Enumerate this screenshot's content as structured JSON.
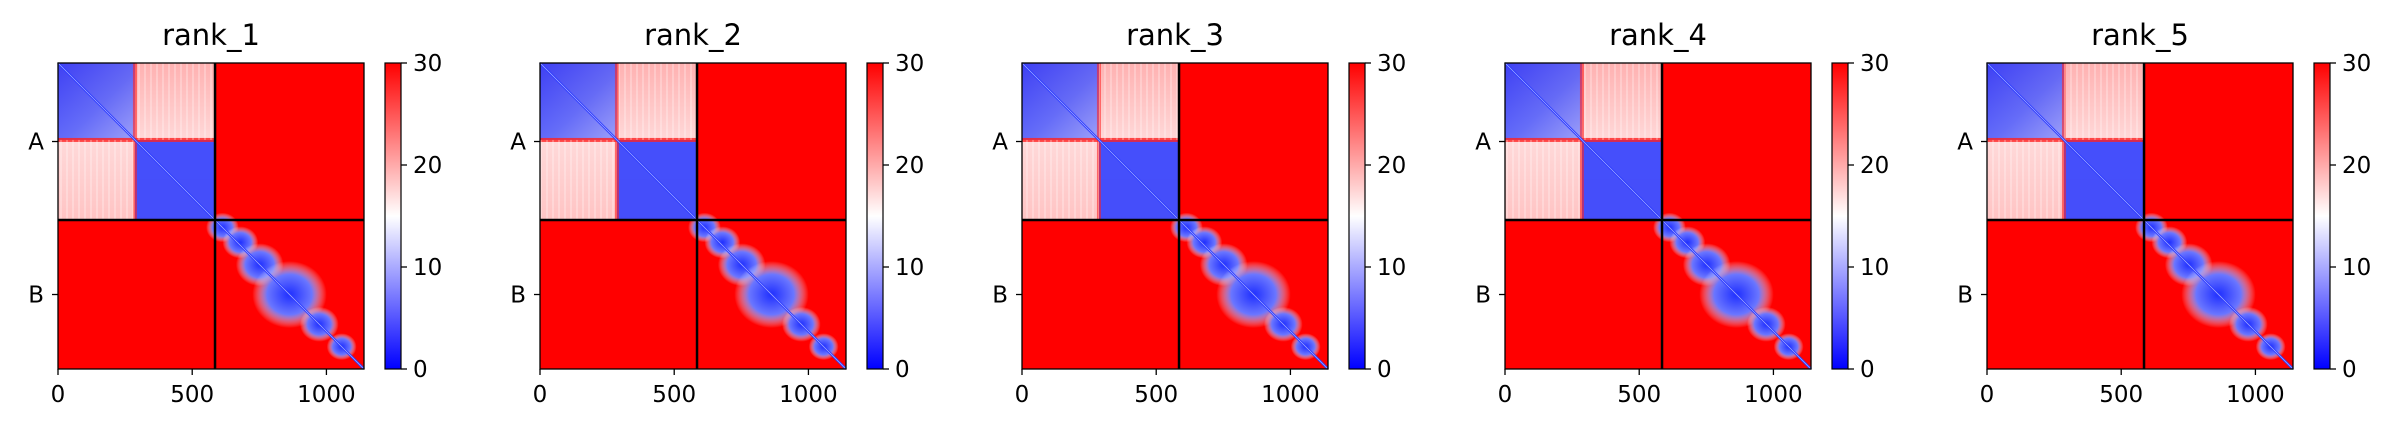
{
  "chart_data": [
    {
      "type": "heatmap",
      "title": "rank_1",
      "y_tick_labels": [
        "A",
        "B"
      ],
      "x_tick_labels": [
        "0",
        "500",
        "1000"
      ],
      "x_ticks": [
        0,
        500,
        1000
      ],
      "xlim": [
        0,
        1140
      ],
      "chain_boundary": 585,
      "colorbar": {
        "min": 0,
        "max": 30,
        "ticks": [
          0,
          10,
          20,
          30
        ],
        "colors": [
          "#0000ff",
          "#ffffff",
          "#ff0000"
        ]
      }
    },
    {
      "type": "heatmap",
      "title": "rank_2",
      "y_tick_labels": [
        "A",
        "B"
      ],
      "x_tick_labels": [
        "0",
        "500",
        "1000"
      ],
      "x_ticks": [
        0,
        500,
        1000
      ],
      "xlim": [
        0,
        1140
      ],
      "chain_boundary": 585,
      "colorbar": {
        "min": 0,
        "max": 30,
        "ticks": [
          0,
          10,
          20,
          30
        ],
        "colors": [
          "#0000ff",
          "#ffffff",
          "#ff0000"
        ]
      }
    },
    {
      "type": "heatmap",
      "title": "rank_3",
      "y_tick_labels": [
        "A",
        "B"
      ],
      "x_tick_labels": [
        "0",
        "500",
        "1000"
      ],
      "x_ticks": [
        0,
        500,
        1000
      ],
      "xlim": [
        0,
        1140
      ],
      "chain_boundary": 585,
      "colorbar": {
        "min": 0,
        "max": 30,
        "ticks": [
          0,
          10,
          20,
          30
        ],
        "colors": [
          "#0000ff",
          "#ffffff",
          "#ff0000"
        ]
      }
    },
    {
      "type": "heatmap",
      "title": "rank_4",
      "y_tick_labels": [
        "A",
        "B"
      ],
      "x_tick_labels": [
        "0",
        "500",
        "1000"
      ],
      "x_ticks": [
        0,
        500,
        1000
      ],
      "xlim": [
        0,
        1140
      ],
      "chain_boundary": 585,
      "colorbar": {
        "min": 0,
        "max": 30,
        "ticks": [
          0,
          10,
          20,
          30
        ],
        "colors": [
          "#0000ff",
          "#ffffff",
          "#ff0000"
        ]
      }
    },
    {
      "type": "heatmap",
      "title": "rank_5",
      "y_tick_labels": [
        "A",
        "B"
      ],
      "x_tick_labels": [
        "0",
        "500",
        "1000"
      ],
      "x_ticks": [
        0,
        500,
        1000
      ],
      "xlim": [
        0,
        1140
      ],
      "chain_boundary": 585,
      "colorbar": {
        "min": 0,
        "max": 30,
        "ticks": [
          0,
          10,
          20,
          30
        ],
        "colors": [
          "#0000ff",
          "#ffffff",
          "#ff0000"
        ]
      }
    }
  ]
}
